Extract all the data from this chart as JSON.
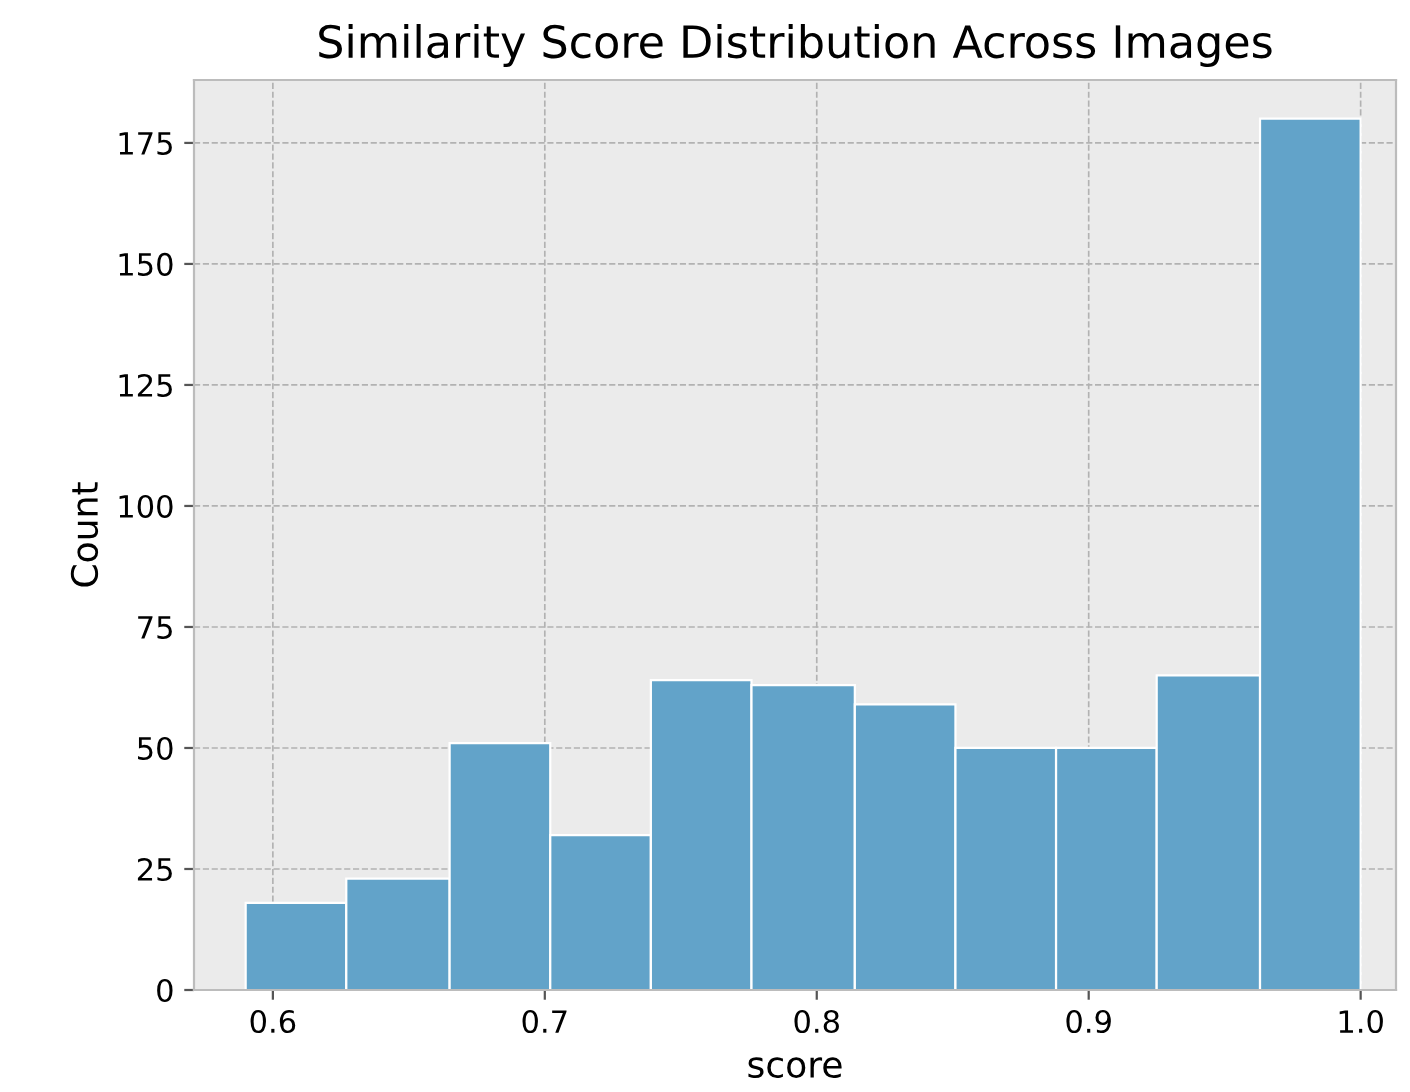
{
  "chart_data": {
    "type": "histogram",
    "title": "Similarity Score Distribution Across Images",
    "xlabel": "score",
    "ylabel": "Count",
    "bins": [
      0.59,
      0.627,
      0.665,
      0.702,
      0.739,
      0.776,
      0.814,
      0.851,
      0.888,
      0.925,
      0.963,
      1.0
    ],
    "values": [
      18,
      23,
      51,
      32,
      64,
      63,
      59,
      50,
      50,
      65,
      180
    ],
    "color": "#62a3c9",
    "xlim": [
      0.571,
      1.013
    ],
    "xticks": [
      0.6,
      0.7,
      0.8,
      0.9,
      {
        "value": 1.0,
        "label": "1.0"
      }
    ],
    "ylim": [
      0,
      188
    ],
    "yticks": [
      0,
      25,
      50,
      75,
      100,
      125,
      150,
      175
    ],
    "grid": true,
    "line_style": "dashed"
  }
}
